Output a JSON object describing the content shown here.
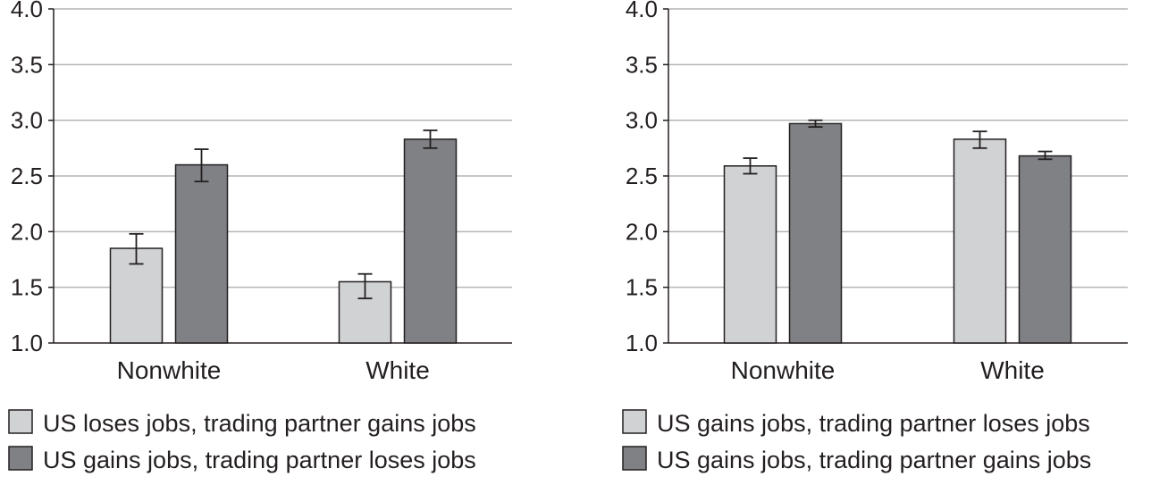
{
  "chart_data": [
    {
      "type": "bar",
      "categories": [
        "Nonwhite",
        "White"
      ],
      "ylim": [
        1.0,
        4.0
      ],
      "yticks": [
        "1.0",
        "1.5",
        "2.0",
        "2.5",
        "3.0",
        "3.5",
        "4.0"
      ],
      "grid": true,
      "legend_position": "bottom",
      "series": [
        {
          "name": "US loses jobs, trading partner gains jobs",
          "color": "#d1d2d4",
          "values": [
            1.85,
            1.55
          ],
          "err_low": [
            1.71,
            1.4
          ],
          "err_high": [
            1.98,
            1.62
          ]
        },
        {
          "name": "US gains jobs, trading partner loses jobs",
          "color": "#808184",
          "values": [
            2.6,
            2.83
          ],
          "err_low": [
            2.45,
            2.75
          ],
          "err_high": [
            2.74,
            2.91
          ]
        }
      ]
    },
    {
      "type": "bar",
      "categories": [
        "Nonwhite",
        "White"
      ],
      "ylim": [
        1.0,
        4.0
      ],
      "yticks": [
        "1.0",
        "1.5",
        "2.0",
        "2.5",
        "3.0",
        "3.5",
        "4.0"
      ],
      "grid": true,
      "legend_position": "bottom",
      "series": [
        {
          "name": "US gains jobs, trading partner loses jobs",
          "color": "#d1d2d4",
          "values": [
            2.59,
            2.83
          ],
          "err_low": [
            2.52,
            2.75
          ],
          "err_high": [
            2.66,
            2.9
          ]
        },
        {
          "name": "US gains jobs, trading partner gains jobs",
          "color": "#808184",
          "values": [
            2.97,
            2.68
          ],
          "err_low": [
            2.94,
            2.65
          ],
          "err_high": [
            3.0,
            2.72
          ]
        }
      ]
    }
  ]
}
